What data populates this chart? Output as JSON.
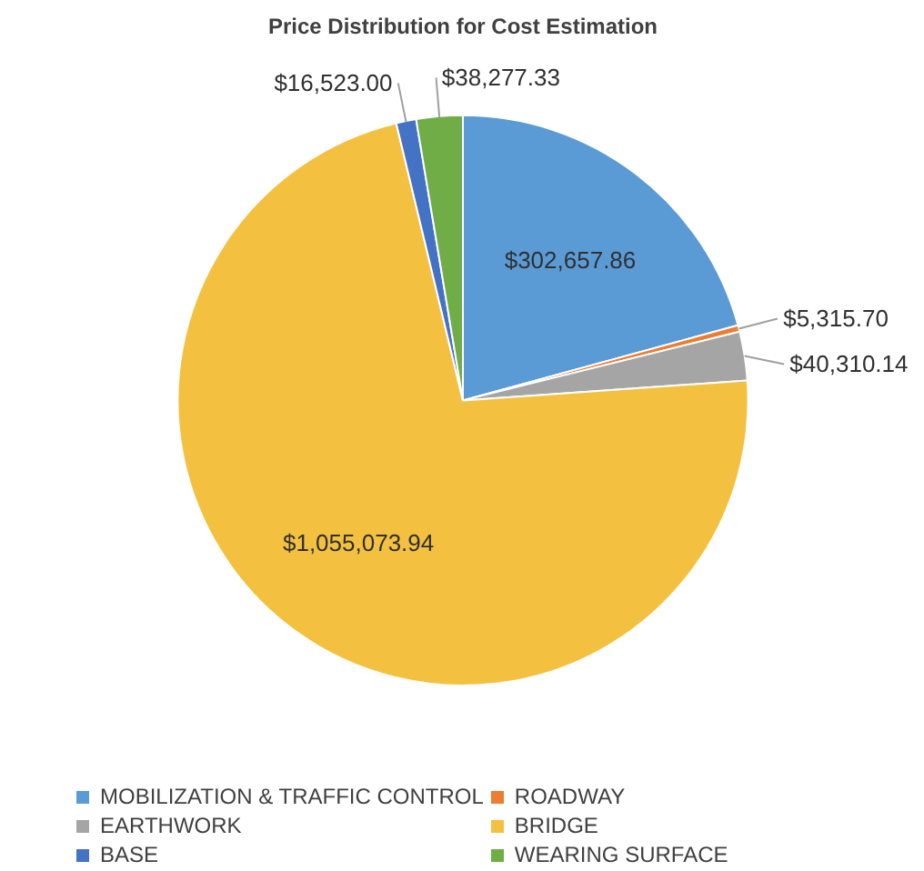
{
  "chart_data": {
    "type": "pie",
    "title": "Price Distribution for Cost Estimation",
    "categories": [
      "MOBILIZATION & TRAFFIC CONTROL",
      "ROADWAY",
      "EARTHWORK",
      "BRIDGE",
      "BASE",
      "WEARING SURFACE"
    ],
    "values": [
      302657.86,
      5315.7,
      40310.14,
      1055073.94,
      16523.0,
      38277.33
    ],
    "colors": [
      "#5b9bd5",
      "#ed7d31",
      "#a5a5a5",
      "#f4c040",
      "#4472c4",
      "#70ad47"
    ],
    "value_labels": [
      "$302,657.86",
      "$5,315.70",
      "$40,310.14",
      "$1,055,073.94",
      "$16,523.00",
      "$38,277.33"
    ],
    "legend": "bottom"
  }
}
